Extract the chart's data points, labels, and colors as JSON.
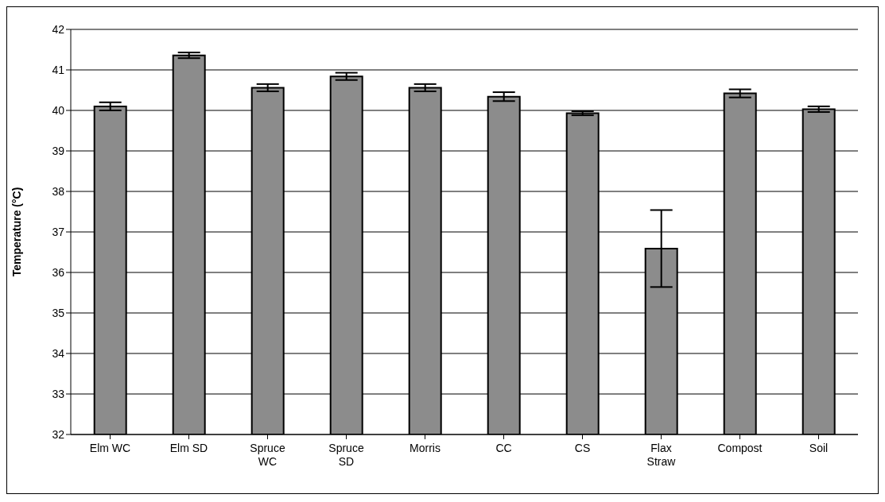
{
  "chart_data": {
    "type": "bar",
    "ylabel": "Temperature (°C)",
    "categories": [
      "Elm WC",
      "Elm SD",
      "Spruce WC",
      "Spruce SD",
      "Morris",
      "CC",
      "CS",
      "Flax Straw",
      "Compost",
      "Soil"
    ],
    "values": [
      40.1,
      41.36,
      40.56,
      40.84,
      40.56,
      40.34,
      39.93,
      36.59,
      40.42,
      40.03
    ],
    "errors": [
      0.1,
      0.07,
      0.09,
      0.09,
      0.09,
      0.11,
      0.05,
      0.95,
      0.1,
      0.07
    ],
    "color": "#8c8c8c",
    "ylim": [
      32,
      42
    ],
    "yticks": [
      32,
      33,
      34,
      35,
      36,
      37,
      38,
      39,
      40,
      41,
      42
    ],
    "grid": "y",
    "legend": false
  }
}
